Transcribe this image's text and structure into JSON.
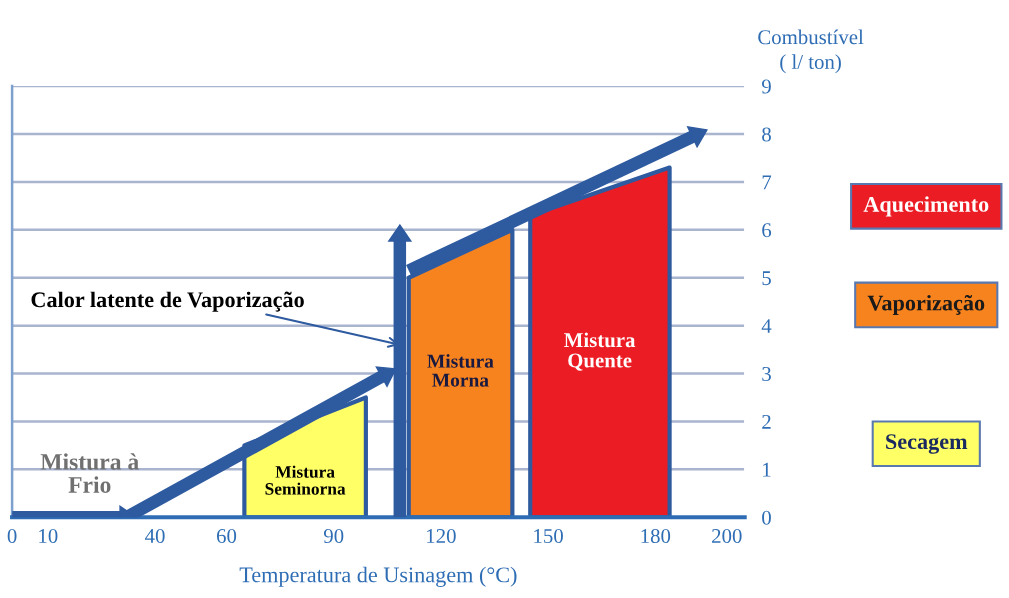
{
  "chart_data": {
    "type": "area",
    "xlabel": "Temperatura de Usinagem (°C)",
    "ylabel": "Combustível\n( l/ ton)",
    "xlim": [
      0,
      205
    ],
    "ylim": [
      0,
      9
    ],
    "xticks": [
      0,
      10,
      40,
      60,
      90,
      120,
      150,
      180,
      200
    ],
    "yticks": [
      0,
      1,
      2,
      3,
      4,
      5,
      6,
      7,
      8,
      9
    ],
    "grid": "y",
    "legend": "right",
    "series": [
      {
        "name": "Secagem",
        "color": "#ffff66",
        "x": [
          65,
          99
        ],
        "values": [
          1.5,
          2.5
        ]
      },
      {
        "name": "Vaporização",
        "color": "#f7831f",
        "x": [
          111,
          140
        ],
        "values": [
          5.0,
          6.0
        ]
      },
      {
        "name": "Aquecimento",
        "color": "#ec1c24",
        "x": [
          145,
          184
        ],
        "values": [
          6.3,
          7.3
        ]
      },
      {
        "type": "line",
        "color": "#2e5aa0",
        "x": [
          0,
          32
        ],
        "values": [
          0,
          0
        ]
      },
      {
        "type": "line",
        "color": "#2e5aa0",
        "x": [
          32,
          105
        ],
        "values": [
          0,
          3.0
        ]
      },
      {
        "type": "line",
        "color": "#2e5aa0",
        "x": [
          108.5,
          108.5
        ],
        "values": [
          0,
          5.9
        ]
      },
      {
        "type": "line",
        "color": "#2e5aa0",
        "x": [
          111,
          192
        ],
        "values": [
          5.15,
          8.0
        ]
      }
    ],
    "annotations": [
      "Mistura à\nFrio",
      "Mistura\nSeminorna",
      "Mistura\nMorna",
      "Mistura\nQuente",
      {
        "text": "Calor latente de Vaporização",
        "x": 108.5,
        "y": 3.6
      }
    ]
  }
}
